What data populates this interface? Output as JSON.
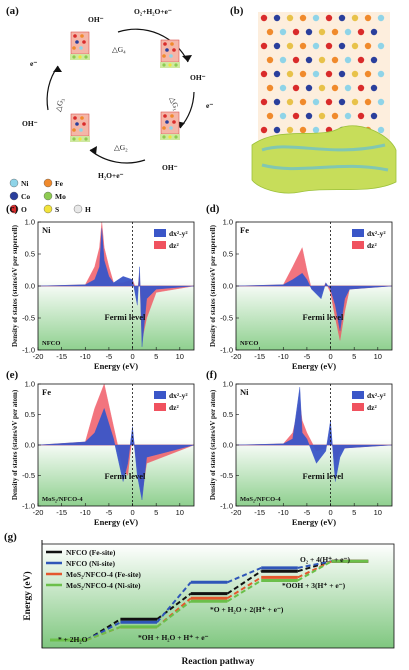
{
  "colors": {
    "blue": "#3a56c8",
    "red": "#f0525f",
    "green_bg": "#9ed39a",
    "line_black": "#111111",
    "line_blue": "#2f56b8",
    "line_red": "#e4572e",
    "line_green": "#6bbf4a"
  },
  "panel_a": {
    "label": "(a)",
    "steps": [
      "OH⁻",
      "O₂+H₂O+e⁻",
      "OH⁻",
      "e⁻",
      "OH⁻",
      "H₂O+e⁻",
      "OH⁻",
      "e⁻"
    ],
    "deltas": [
      "△G₁",
      "△G₂",
      "△G₃",
      "△G₄"
    ],
    "legend": [
      {
        "symbol": "Ni",
        "color": "#8fd4e8"
      },
      {
        "symbol": "Fe",
        "color": "#f08a2c"
      },
      {
        "symbol": "Co",
        "color": "#2a3f9c"
      },
      {
        "symbol": "Mo",
        "color": "#8ecb52"
      },
      {
        "symbol": "O",
        "color": "#d92b2b"
      },
      {
        "symbol": "S",
        "color": "#f2e33a"
      },
      {
        "symbol": "H",
        "color": "#e8e8e8"
      }
    ],
    "icon": "catalyst-structure-icon"
  },
  "panel_b": {
    "label": "(b)",
    "icon": "charge-density-structure-icon"
  },
  "dos_panels": [
    {
      "label": "(c)",
      "element": "Ni",
      "sample": "NFCO",
      "ylabel": "Density of states (states/eV per supercell)",
      "xlabel": "Energy (eV)",
      "fermi": "Fermi level",
      "ylim": [
        -1.0,
        1.0
      ],
      "yticks": [
        "1.0",
        "0.5",
        "0.0",
        "-0.5",
        "-1.0"
      ]
    },
    {
      "label": "(d)",
      "element": "Fe",
      "sample": "NFCO",
      "ylabel": "Density of states (states/eV per supercell)",
      "xlabel": "Energy (eV)",
      "fermi": "Fermi level",
      "ylim": [
        -1.0,
        1.0
      ],
      "yticks": [
        "1.0",
        "0.5",
        "0.0",
        "-0.5",
        "-1.0"
      ]
    },
    {
      "label": "(e)",
      "element": "Fe",
      "sample": "MoS₂/NFCO-4",
      "ylabel": "Density of states (states/eV per atom)",
      "xlabel": "Energy (eV)",
      "fermi": "Fermi level",
      "ylim": [
        -1.0,
        1.0
      ],
      "yticks": [
        "1.0",
        "0.5",
        "0.0",
        "-0.5",
        "-1.0"
      ]
    },
    {
      "label": "(f)",
      "element": "Ni",
      "sample": "MoS₂/NFCO-4",
      "ylabel": "Density of states (states/eV per atom)",
      "xlabel": "Energy (eV)",
      "fermi": "Fermi level",
      "ylim": [
        -1.0,
        1.0
      ],
      "yticks": [
        "1.0",
        "0.5",
        "0.0",
        "-0.5",
        "-1.0"
      ]
    }
  ],
  "dos_legend": [
    "dx²-y²",
    "dz²"
  ],
  "xticks": [
    "-20",
    "-15",
    "-10",
    "-5",
    "0",
    "5",
    "10"
  ],
  "panel_g": {
    "label": "(g)",
    "ylabel": "Energy (eV)",
    "xlabel": "Reaction pathway",
    "species": [
      "* + 2H₂O",
      "*OH + H₂O + H⁺ + e⁻",
      "*O + H₂O + 2(H⁺ + e⁻)",
      "*OOH + 3(H⁺ + e⁻)",
      "O₂ + 4(H⁺ + e⁻)"
    ],
    "legend": [
      "NFCO (Fe-site)",
      "NFCO (Ni-site)",
      "MoS₂/NFCO-4 (Fe-site)",
      "MoS₂/NFCO-4 (Ni-site)"
    ]
  },
  "chart_data": [
    {
      "type": "area",
      "title": "",
      "xlabel": "Energy (eV)",
      "ylabel": "Density of states (states/eV per supercell)",
      "xlim": [
        -20,
        13
      ],
      "ylim": [
        -1.0,
        1.0
      ],
      "series": [
        {
          "name": "dx²-y²",
          "x": [
            -20,
            -10,
            -8,
            -7,
            -6.5,
            -6,
            -5,
            -4,
            -2,
            0,
            1,
            1.5,
            2,
            3,
            5,
            13
          ],
          "y": [
            0,
            0.02,
            0.1,
            0.3,
            0.9,
            0.4,
            0.15,
            0.05,
            0.15,
            0.1,
            -0.3,
            0.3,
            -0.95,
            -0.2,
            -0.05,
            0
          ]
        },
        {
          "name": "dz²",
          "x": [
            -20,
            -10,
            -8,
            -7,
            -6.5,
            -6,
            -5,
            -4,
            -2,
            0,
            1,
            1.5,
            2,
            3,
            5,
            13
          ],
          "y": [
            0,
            0.02,
            0.3,
            0.6,
            1.0,
            0.6,
            0.3,
            0.05,
            0.05,
            0.1,
            -0.1,
            0.2,
            -0.85,
            -0.5,
            -0.1,
            0
          ]
        }
      ]
    },
    {
      "type": "area",
      "xlabel": "Energy (eV)",
      "ylabel": "Density of states (states/eV per supercell)",
      "xlim": [
        -20,
        13
      ],
      "ylim": [
        -1.0,
        1.0
      ],
      "series": [
        {
          "name": "dx²-y²",
          "x": [
            -20,
            -10,
            -8,
            -6,
            -5,
            -4,
            -2,
            -1,
            0,
            1,
            2,
            3,
            4,
            13
          ],
          "y": [
            0,
            0.02,
            0.1,
            0.2,
            0.1,
            -0.05,
            -0.2,
            0.05,
            -0.05,
            -0.3,
            -0.7,
            -0.2,
            -0.05,
            0
          ]
        },
        {
          "name": "dz²",
          "x": [
            -20,
            -10,
            -8,
            -6,
            -5,
            -4,
            -2,
            -1,
            0,
            1,
            2,
            3,
            4,
            13
          ],
          "y": [
            0,
            0.02,
            0.3,
            0.6,
            0.25,
            -0.05,
            -0.1,
            0.05,
            -0.1,
            -0.5,
            -0.85,
            -0.4,
            -0.05,
            0
          ]
        }
      ]
    },
    {
      "type": "area",
      "xlabel": "Energy (eV)",
      "ylabel": "Density of states (states/eV per atom)",
      "xlim": [
        -20,
        13
      ],
      "ylim": [
        -1.0,
        1.0
      ],
      "series": [
        {
          "name": "dx²-y²",
          "x": [
            -20,
            -10,
            -8,
            -6,
            -4,
            -2,
            -1,
            0,
            1,
            2,
            3,
            13
          ],
          "y": [
            0,
            0.05,
            0.2,
            0.6,
            0.1,
            -0.6,
            -0.3,
            0.3,
            -0.5,
            -0.9,
            -0.2,
            0
          ]
        },
        {
          "name": "dz²",
          "x": [
            -20,
            -10,
            -8,
            -6,
            -4,
            -2,
            -1,
            0,
            1,
            2,
            3,
            13
          ],
          "y": [
            0,
            0.05,
            0.6,
            1.0,
            0.3,
            -0.4,
            -0.5,
            0.2,
            -0.3,
            -0.8,
            -0.3,
            0
          ]
        }
      ]
    },
    {
      "type": "area",
      "xlabel": "Energy (eV)",
      "ylabel": "Density of states (states/eV per atom)",
      "xlim": [
        -20,
        13
      ],
      "ylim": [
        -1.0,
        1.0
      ],
      "series": [
        {
          "name": "dx²-y²",
          "x": [
            -20,
            -10,
            -8,
            -6.5,
            -6,
            -5,
            -3,
            -1,
            0,
            1,
            2,
            3,
            13
          ],
          "y": [
            0,
            0.02,
            0.1,
            0.95,
            0.2,
            0.1,
            -0.3,
            -0.1,
            0.4,
            -0.6,
            -0.2,
            -0.05,
            0
          ]
        },
        {
          "name": "dz²",
          "x": [
            -20,
            -10,
            -8,
            -6.5,
            -6,
            -5,
            -3,
            -1,
            0,
            1,
            2,
            3,
            13
          ],
          "y": [
            0,
            0.02,
            0.2,
            0.7,
            0.4,
            0.2,
            -0.1,
            -0.05,
            0.2,
            -0.3,
            -0.1,
            -0.05,
            0
          ]
        }
      ]
    },
    {
      "type": "line",
      "xlabel": "Reaction pathway",
      "ylabel": "Energy (eV)",
      "categories": [
        "* + 2H₂O",
        "*OH",
        "*O",
        "*OOH",
        "O₂"
      ],
      "ylim": [
        0,
        5.5
      ],
      "series": [
        {
          "name": "NFCO (Fe-site)",
          "values": [
            0,
            1.3,
            2.9,
            4.3,
            4.92
          ]
        },
        {
          "name": "NFCO (Ni-site)",
          "values": [
            0,
            1.2,
            3.7,
            4.6,
            4.92
          ]
        },
        {
          "name": "MoS₂/NFCO-4 (Fe-site)",
          "values": [
            0,
            1.0,
            2.8,
            4.1,
            4.92
          ]
        },
        {
          "name": "MoS₂/NFCO-4 (Ni-site)",
          "values": [
            0,
            1.1,
            2.7,
            4.0,
            4.92
          ]
        }
      ]
    }
  ]
}
